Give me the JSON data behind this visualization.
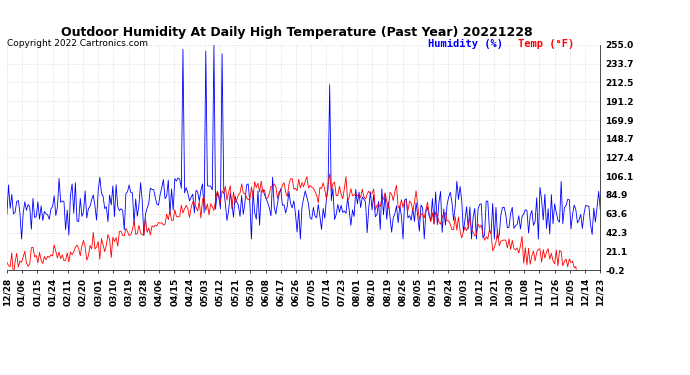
{
  "title": "Outdoor Humidity At Daily High Temperature (Past Year) 20221228",
  "copyright": "Copyright 2022 Cartronics.com",
  "legend_humidity": "Humidity (%)",
  "legend_temp": "Temp (°F)",
  "humidity_color": "blue",
  "temp_color": "red",
  "background_color": "#ffffff",
  "grid_color": "#cccccc",
  "yticks": [
    255.0,
    233.7,
    212.5,
    191.2,
    169.9,
    148.7,
    127.4,
    106.1,
    84.9,
    63.6,
    42.3,
    21.1,
    -0.2
  ],
  "xtick_labels": [
    "12/28",
    "01/06",
    "01/15",
    "01/24",
    "02/11",
    "02/20",
    "03/01",
    "03/10",
    "03/19",
    "03/28",
    "04/06",
    "04/15",
    "04/24",
    "05/03",
    "05/12",
    "05/21",
    "05/30",
    "06/08",
    "06/17",
    "06/26",
    "07/05",
    "07/14",
    "07/23",
    "08/01",
    "08/10",
    "08/19",
    "08/26",
    "09/05",
    "09/15",
    "09/24",
    "10/03",
    "10/12",
    "10/21",
    "10/30",
    "11/08",
    "11/17",
    "11/26",
    "12/05",
    "12/14",
    "12/23"
  ],
  "ylim_min": -0.2,
  "ylim_max": 255.0,
  "num_points": 365,
  "title_fontsize": 9,
  "copyright_fontsize": 6.5,
  "legend_fontsize": 7.5,
  "tick_fontsize": 6.5,
  "spike_positions": [
    108,
    122,
    127,
    132,
    198
  ],
  "spike_values": [
    250,
    248,
    255,
    245,
    210
  ]
}
